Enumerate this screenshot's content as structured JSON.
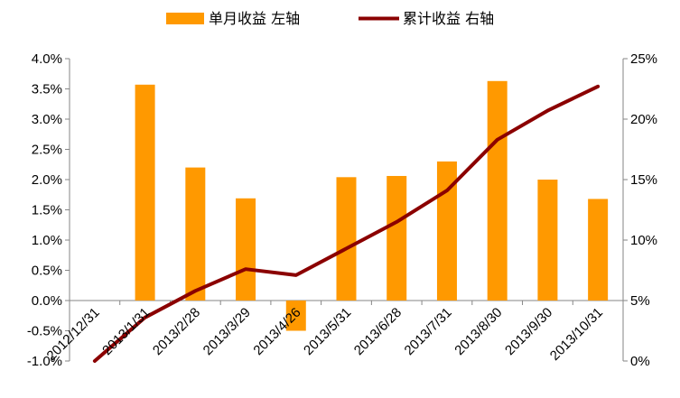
{
  "chart_data": {
    "type": "bar",
    "categories": [
      "2012/12/31",
      "2013/1/31",
      "2013/2/28",
      "2013/3/29",
      "2013/4/26",
      "2013/5/31",
      "2013/6/28",
      "2013/7/31",
      "2013/8/30",
      "2013/9/30",
      "2013/10/31"
    ],
    "legend": {
      "position": "top",
      "bar_label": "单月收益  左轴",
      "line_label": "累计收益  右轴"
    },
    "series": [
      {
        "name": "单月收益  左轴",
        "type": "bar",
        "axis": "left",
        "color": "#FF9900",
        "values": [
          null,
          3.57,
          2.2,
          1.69,
          -0.5,
          2.04,
          2.06,
          2.3,
          3.63,
          2.0,
          1.68
        ]
      },
      {
        "name": "累计收益  右轴",
        "type": "line",
        "axis": "right",
        "color": "#8B0000",
        "values": [
          0.0,
          3.6,
          5.8,
          7.6,
          7.1,
          9.3,
          11.5,
          14.1,
          18.3,
          20.7,
          22.7
        ]
      }
    ],
    "y_left": {
      "min": -1.0,
      "max": 4.0,
      "step": 0.5,
      "ticks": [
        "-1.0%",
        "-0.5%",
        "0.0%",
        "0.5%",
        "1.0%",
        "1.5%",
        "2.0%",
        "2.5%",
        "3.0%",
        "3.5%",
        "4.0%"
      ]
    },
    "y_right": {
      "min": 0,
      "max": 25,
      "step": 5,
      "ticks": [
        "0%",
        "5%",
        "10%",
        "15%",
        "20%",
        "25%"
      ]
    },
    "grid": false
  }
}
